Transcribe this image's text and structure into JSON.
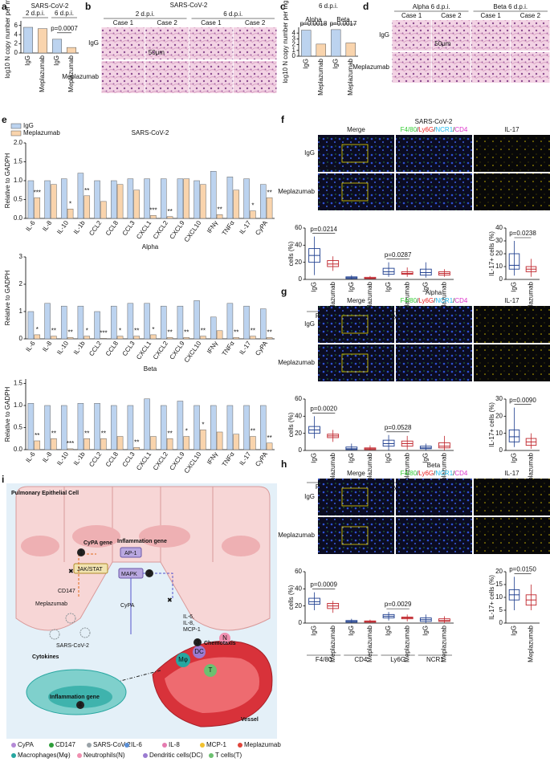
{
  "panel_labels": [
    "a",
    "b",
    "c",
    "d",
    "e",
    "f",
    "g",
    "h",
    "i"
  ],
  "panel_a": {
    "type": "bar",
    "title": "SARS-CoV-2",
    "groups": [
      "2 d.p.i.",
      "6 d.p.i."
    ],
    "y_label": "log10 N copy number per mg",
    "categories": [
      "IgG",
      "Meplazumab",
      "IgG",
      "Meplazumab"
    ],
    "values": [
      5.6,
      5.3,
      3.0,
      1.2
    ],
    "colors": [
      "#bcd3ef",
      "#f9d4ad",
      "#bcd3ef",
      "#f9d4ad"
    ],
    "ylim": [
      0,
      7
    ],
    "yticks": [
      0,
      2,
      4,
      6
    ],
    "annotation": "p=0.0007"
  },
  "panel_b": {
    "title": "SARS-CoV-2",
    "groups": [
      "2 d.p.i.",
      "6 d.p.i."
    ],
    "columns": [
      "Case 1",
      "Case 2",
      "Case 1",
      "Case 2"
    ],
    "rows": [
      "IgG",
      "Meplazumab"
    ],
    "scale_bar": "50μm"
  },
  "panel_c": {
    "type": "bar",
    "title": "6 d.p.i.",
    "groups": [
      "Alpha",
      "Beta"
    ],
    "y_label": "log10 N copy number per mg",
    "categories": [
      "IgG",
      "Meplazumab",
      "IgG",
      "Meplazumab"
    ],
    "values": [
      4.5,
      2.1,
      4.6,
      2.3
    ],
    "colors": [
      "#bcd3ef",
      "#f9d4ad",
      "#bcd3ef",
      "#f9d4ad"
    ],
    "ylim": [
      0,
      5
    ],
    "yticks": [
      0,
      1,
      2,
      3,
      4
    ],
    "annotations": [
      "p=0.0018",
      "p=0.0017"
    ]
  },
  "panel_d": {
    "groups": [
      "Alpha 6 d.p.i.",
      "Beta 6 d.p.i."
    ],
    "columns": [
      "Case 1",
      "Case 2",
      "Case 1",
      "Case 2"
    ],
    "rows": [
      "IgG",
      "Meplazumab"
    ],
    "scale_bar": "50μm"
  },
  "panel_e": {
    "legend": [
      {
        "name": "IgG",
        "color": "#bcd3ef"
      },
      {
        "name": "Meplazumab",
        "color": "#f9d4ad"
      }
    ],
    "charts": [
      {
        "type": "bar",
        "title": "SARS-CoV-2",
        "y_label": "Relative to GADPH",
        "categories": [
          "IL-6",
          "IL-8",
          "IL-10",
          "IL-1b",
          "CCL2",
          "CCL8",
          "CCL3",
          "CXCL1",
          "CXCL2",
          "CXCL9",
          "CXCL10",
          "IFNγ",
          "TNFα",
          "IL-17",
          "CyPA"
        ],
        "values": [
          [
            1.0,
            1.0,
            1.05,
            1.2,
            1.0,
            1.0,
            1.05,
            1.05,
            1.05,
            1.05,
            1.0,
            1.25,
            1.1,
            1.05,
            0.9
          ],
          [
            0.55,
            0.9,
            0.25,
            0.6,
            0.45,
            0.9,
            0.75,
            0.08,
            0.05,
            1.05,
            0.9,
            0.1,
            0.75,
            0.2,
            0.55
          ]
        ],
        "significance": [
          "***",
          null,
          "*",
          "**",
          null,
          null,
          null,
          "***",
          "**",
          null,
          null,
          "**",
          null,
          "*",
          "**"
        ],
        "ylim": [
          0,
          2
        ],
        "yticks": [
          {
            "value": 0,
            "label": "0.0"
          },
          0.5,
          {
            "value": 1,
            "label": "1.0"
          },
          1.5,
          {
            "value": 2,
            "label": "2.0"
          }
        ]
      },
      {
        "type": "bar",
        "title": "Alpha",
        "y_label": "Relative to GADPH",
        "categories": [
          "IL-6",
          "IL-8",
          "IL-10",
          "IL-1b",
          "CCL2",
          "CCL8",
          "CCL3",
          "CXCL1",
          "CXCL2",
          "CXCL9",
          "CXCL10",
          "IFNγ",
          "TNFα",
          "IL-17",
          "CyPA"
        ],
        "values": [
          [
            1.0,
            1.3,
            1.2,
            1.2,
            1.0,
            1.2,
            1.3,
            1.3,
            1.2,
            1.2,
            1.4,
            0.8,
            1.3,
            1.2,
            1.1
          ],
          [
            0.15,
            0.1,
            0.05,
            0.1,
            0.02,
            0.1,
            0.1,
            0.15,
            0.05,
            0.05,
            0.1,
            0.3,
            0.05,
            0.1,
            0.05
          ]
        ],
        "significance": [
          "*",
          "**",
          "**",
          "*",
          "***",
          "*",
          "**",
          "*",
          "**",
          "**",
          "**",
          null,
          "**",
          "**",
          "**"
        ],
        "ylim": [
          0,
          3
        ],
        "yticks": [
          0,
          1,
          2,
          3
        ]
      },
      {
        "type": "bar",
        "title": "Beta",
        "y_label": "Relative to GADPH",
        "categories": [
          "IL-6",
          "IL-8",
          "IL-10",
          "IL-1b",
          "CCL2",
          "CCL8",
          "CCL3",
          "CXCL1",
          "CXCL2",
          "CXCL9",
          "CXCL10",
          "IFNγ",
          "TNFα",
          "IL-17",
          "CyPA"
        ],
        "values": [
          [
            1.05,
            1.0,
            1.0,
            1.05,
            1.05,
            1.0,
            1.0,
            1.15,
            1.0,
            1.1,
            1.0,
            1.0,
            1.0,
            1.0,
            1.0
          ],
          [
            0.2,
            0.25,
            0.02,
            0.25,
            0.25,
            0.3,
            0.05,
            0.3,
            0.25,
            0.3,
            0.45,
            0.4,
            0.35,
            0.3,
            0.15
          ]
        ],
        "significance": [
          "**",
          "**",
          "***",
          "**",
          "**",
          null,
          "**",
          null,
          "**",
          "*",
          "*",
          null,
          null,
          "**",
          "**"
        ],
        "ylim": [
          0,
          1.6
        ],
        "yticks": [
          {
            "value": 0,
            "label": "0.0"
          },
          0.5,
          {
            "value": 1,
            "label": "1.0"
          },
          1.5
        ]
      }
    ]
  },
  "panel_f": {
    "title": "SARS-CoV-2",
    "merge": "Merge",
    "markers": [
      {
        "name": "F4/80",
        "color": "#33cc33"
      },
      {
        "name": "Ly6G",
        "color": "#ee2222"
      },
      {
        "name": "NCR1",
        "color": "#22bbee"
      },
      {
        "name": "CD4",
        "color": "#dd33cc"
      }
    ],
    "separator": "/",
    "il17": {
      "name": "IL-17",
      "color": "#e8c400"
    },
    "rows": [
      "IgG",
      "Meplazumab"
    ],
    "scale_bar": "100μm",
    "box": {
      "type": "box",
      "y_label": "cells (%)",
      "groups": [
        "F4/80",
        "CD4",
        "Ly6G",
        "NCR1"
      ],
      "categories": [
        "IgG",
        "Meplazumab",
        "IgG",
        "Meplazumab",
        "IgG",
        "Meplazumab",
        "IgG",
        "Meplazumab"
      ],
      "boxes": [
        [
          5,
          20,
          28,
          36,
          50
        ],
        [
          10,
          15,
          18,
          22,
          27
        ],
        [
          0,
          1,
          2,
          3,
          5
        ],
        [
          0,
          1,
          1.5,
          2.5,
          4
        ],
        [
          3,
          6,
          9,
          13,
          20
        ],
        [
          3,
          6,
          7,
          9,
          14
        ],
        [
          2,
          5,
          8,
          12,
          20
        ],
        [
          3,
          5,
          7,
          9,
          12
        ]
      ],
      "colors": [
        "#1f3f8f",
        "#c0262d",
        "#1f3f8f",
        "#c0262d",
        "#1f3f8f",
        "#c0262d",
        "#1f3f8f",
        "#c0262d"
      ],
      "ylim": [
        0,
        60
      ],
      "yticks": [
        0,
        20,
        40,
        60
      ],
      "annotations": [
        "p=0.0214",
        null,
        "p=0.0287",
        null
      ]
    },
    "il17_box": {
      "type": "box",
      "y_label": "IL-17+ cells (%)",
      "categories": [
        "IgG",
        "Meplazumab"
      ],
      "boxes": [
        [
          3,
          8,
          11,
          20,
          30
        ],
        [
          2,
          6,
          8,
          10,
          16
        ]
      ],
      "colors": [
        "#1f3f8f",
        "#c0262d"
      ],
      "ylim": [
        0,
        40
      ],
      "yticks": [
        0,
        10,
        20,
        30,
        40
      ],
      "annotation": "p=0.0238"
    }
  },
  "panel_g": {
    "title": "Alpha",
    "merge": "Merge",
    "markers": [
      {
        "name": "F4/80",
        "color": "#33cc33"
      },
      {
        "name": "Ly6G",
        "color": "#ee2222"
      },
      {
        "name": "NCR1",
        "color": "#22bbee"
      },
      {
        "name": "CD4",
        "color": "#dd33cc"
      }
    ],
    "separator": "/",
    "il17": {
      "name": "IL-17",
      "color": "#e8c400"
    },
    "rows": [
      "IgG",
      "Meplazumab"
    ],
    "scale_bar": "100μm",
    "box": {
      "type": "box",
      "y_label": "cells (%)",
      "groups": [
        "F4/80",
        "CD4",
        "Ly6G",
        "NCR1"
      ],
      "categories": [
        "IgG",
        "Meplazumab",
        "IgG",
        "Meplazumab",
        "IgG",
        "Meplazumab",
        "IgG",
        "Meplazumab"
      ],
      "boxes": [
        [
          14,
          20,
          24,
          28,
          40
        ],
        [
          10,
          15,
          17,
          19,
          24
        ],
        [
          0,
          1,
          2,
          4,
          8
        ],
        [
          0,
          1,
          2,
          3,
          6
        ],
        [
          0,
          5,
          8,
          12,
          18
        ],
        [
          1,
          5,
          8,
          11,
          17
        ],
        [
          0,
          2,
          3,
          5,
          8
        ],
        [
          0,
          3,
          5,
          9,
          17
        ]
      ],
      "colors": [
        "#1f3f8f",
        "#c0262d",
        "#1f3f8f",
        "#c0262d",
        "#1f3f8f",
        "#c0262d",
        "#1f3f8f",
        "#c0262d"
      ],
      "ylim": [
        0,
        60
      ],
      "yticks": [
        0,
        20,
        40,
        60
      ],
      "annotations": [
        "p=0.0020",
        null,
        "p=0.0528",
        null
      ]
    },
    "il17_box": {
      "type": "box",
      "y_label": "IL-17+ cells (%)",
      "categories": [
        "IgG",
        "Meplazumab"
      ],
      "boxes": [
        [
          2,
          5,
          8,
          12,
          25
        ],
        [
          1,
          3,
          5,
          7,
          10
        ]
      ],
      "colors": [
        "#1f3f8f",
        "#c0262d"
      ],
      "ylim": [
        0,
        30
      ],
      "yticks": [
        0,
        10,
        20,
        30
      ],
      "annotation": "p=0.0090"
    }
  },
  "panel_h": {
    "title": "Beta",
    "merge": "Merge",
    "markers": [
      {
        "name": "F4/80",
        "color": "#33cc33"
      },
      {
        "name": "Ly6G",
        "color": "#ee2222"
      },
      {
        "name": "NCR1",
        "color": "#22bbee"
      },
      {
        "name": "CD4",
        "color": "#dd33cc"
      }
    ],
    "separator": "/",
    "il17": {
      "name": "IL-17",
      "color": "#e8c400"
    },
    "rows": [
      "IgG",
      "Meplazumab"
    ],
    "scale_bar": "100μm",
    "box": {
      "type": "box",
      "y_label": "cells (%)",
      "groups": [
        "F4/80",
        "CD4",
        "Ly6G",
        "NCR1"
      ],
      "categories": [
        "IgG",
        "Meplazumab",
        "IgG",
        "Meplazumab",
        "IgG",
        "Meplazumab",
        "IgG",
        "Meplazumab"
      ],
      "boxes": [
        [
          15,
          22,
          25,
          29,
          36
        ],
        [
          12,
          17,
          20,
          23,
          26
        ],
        [
          0,
          1,
          2,
          3,
          5
        ],
        [
          0,
          1,
          2,
          2.5,
          4
        ],
        [
          3,
          6,
          8,
          10,
          13
        ],
        [
          2,
          5,
          6,
          7,
          10
        ],
        [
          0,
          2,
          4,
          6,
          10
        ],
        [
          0,
          2,
          3,
          5,
          8
        ]
      ],
      "colors": [
        "#1f3f8f",
        "#c0262d",
        "#1f3f8f",
        "#c0262d",
        "#1f3f8f",
        "#c0262d",
        "#1f3f8f",
        "#c0262d"
      ],
      "ylim": [
        0,
        60
      ],
      "yticks": [
        0,
        20,
        40,
        60
      ],
      "annotations": [
        "p=0.0009",
        null,
        "p=0.0029",
        null
      ]
    },
    "il17_box": {
      "type": "box",
      "y_label": "IL-17+ cells (%)",
      "categories": [
        "IgG",
        "Meplazumab"
      ],
      "boxes": [
        [
          5,
          9,
          11,
          13,
          18
        ],
        [
          5,
          7,
          9,
          11,
          15
        ]
      ],
      "colors": [
        "#1f3f8f",
        "#c0262d"
      ],
      "ylim": [
        0,
        20
      ],
      "yticks": [
        0,
        5,
        10,
        15,
        20
      ],
      "annotation": "p=0.0150"
    }
  },
  "panel_i": {
    "cell_label": "Pulmonary Epithelial Cell",
    "cypa_gene": "CyPA gene",
    "inflammation_gene": "Inflammation gene",
    "ap1": "AP-1",
    "jak_stat": "JAK/STAT",
    "mapk": "MAPK",
    "cd147": "CD147",
    "meplazumab": "Meplazumab",
    "virus": "SARS-CoV-2",
    "cypa": "CyPA",
    "cytokine_list": [
      "IL-6,",
      "IL-8,",
      "MCP-1"
    ],
    "steps": [
      "1",
      "2",
      "3",
      "4"
    ],
    "chemotaxis": "Chemotaxis",
    "cytokines": "Cytokines",
    "inflammation_gene_2": "Inflammation gene",
    "vessel": "Vessel",
    "cell_tags": [
      "Mφ",
      "DC",
      "T",
      "N"
    ],
    "legend": [
      {
        "label": "CyPA",
        "color": "#b48ad6"
      },
      {
        "label": "CD147",
        "color": "#2e9d3a"
      },
      {
        "label": "SARS-CoV-2",
        "color": "#9aa3a8"
      },
      {
        "label": "IL-6",
        "color": "#5a8fd6"
      },
      {
        "label": "IL-8",
        "color": "#e57bb0"
      },
      {
        "label": "MCP-1",
        "color": "#f2c12e"
      },
      {
        "label": "Meplazumab",
        "color": "#e0453a"
      },
      {
        "label": "Macrophages(Mφ)",
        "color": "#27a6a0"
      },
      {
        "label": "Neutrophils(N)",
        "color": "#f08fb0"
      },
      {
        "label": "Dendritic cells(DC)",
        "color": "#9b7bd1"
      },
      {
        "label": "T cells(T)",
        "color": "#6cc070"
      }
    ]
  }
}
